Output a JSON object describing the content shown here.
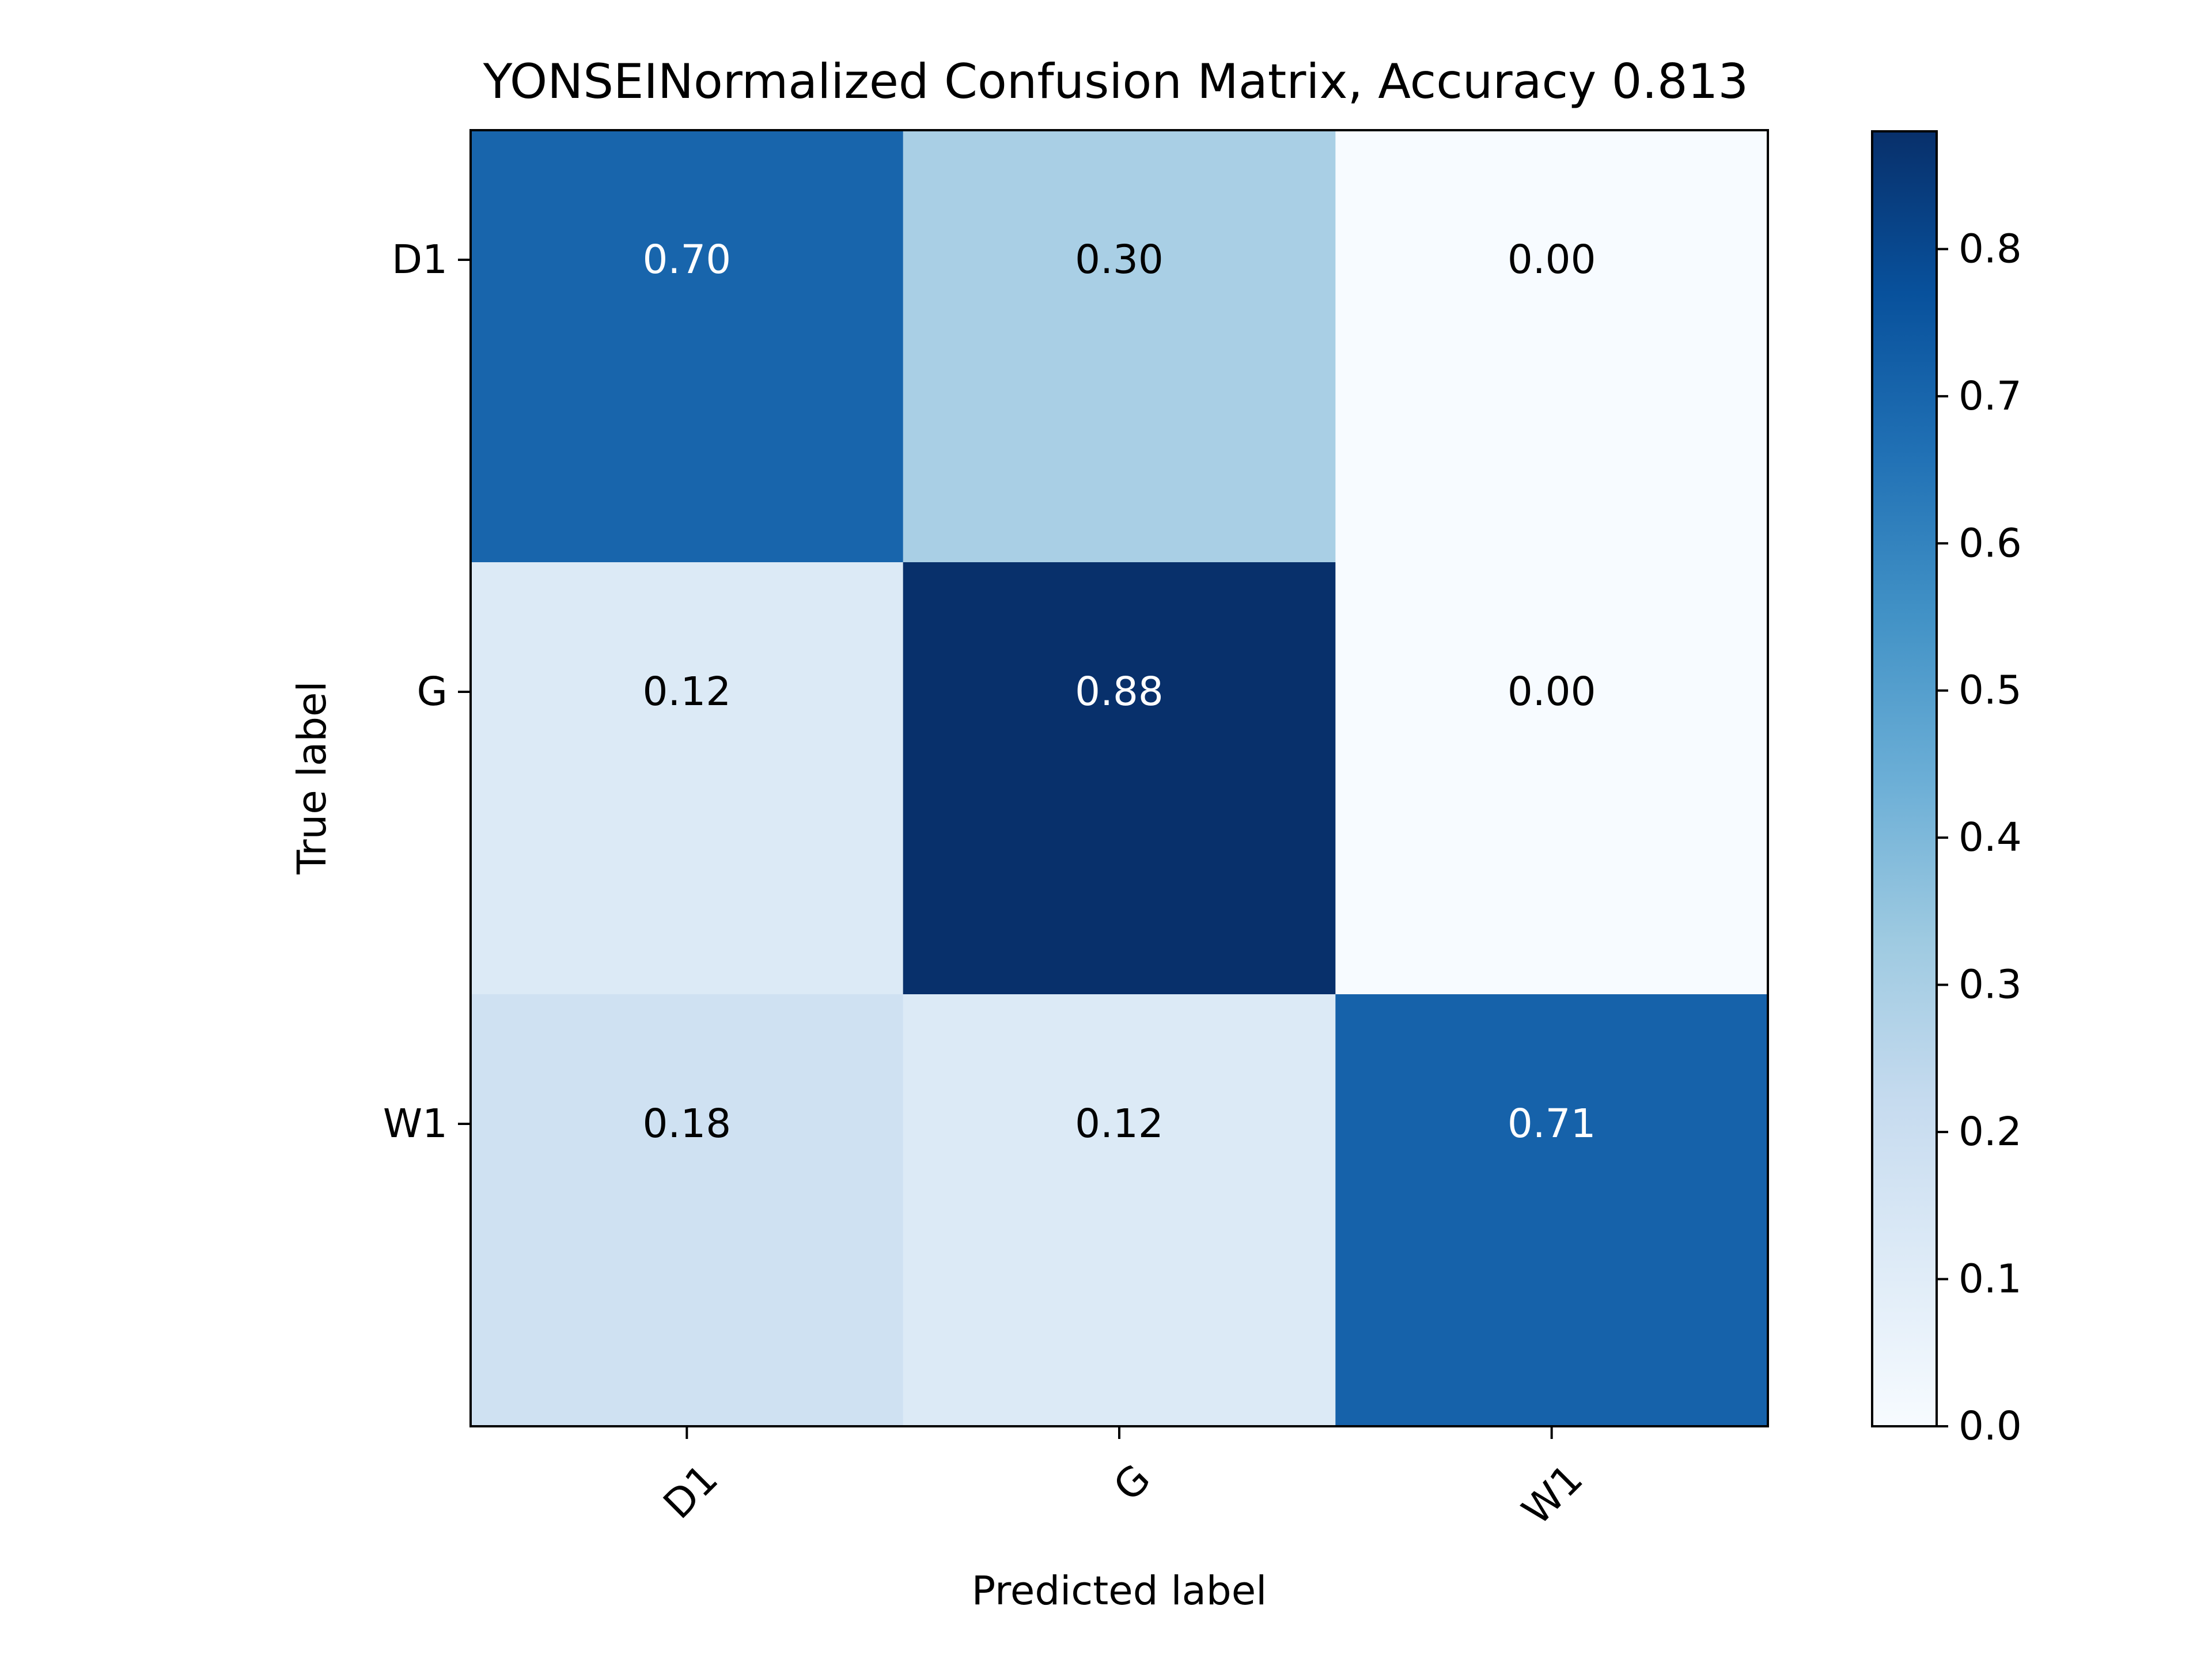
{
  "chart_data": {
    "type": "heatmap",
    "title": "YONSEINormalized Confusion Matrix, Accuracy 0.813",
    "xlabel": "Predicted label",
    "ylabel": "True label",
    "x_categories": [
      "D1",
      "G",
      "W1"
    ],
    "y_categories": [
      "D1",
      "G",
      "W1"
    ],
    "values": [
      [
        0.7,
        0.3,
        0.0
      ],
      [
        0.12,
        0.88,
        0.0
      ],
      [
        0.18,
        0.12,
        0.71
      ]
    ],
    "value_labels": [
      [
        "0.70",
        "0.30",
        "0.00"
      ],
      [
        "0.12",
        "0.88",
        "0.00"
      ],
      [
        "0.18",
        "0.12",
        "0.71"
      ]
    ],
    "colorbar": {
      "range": [
        0.0,
        0.88
      ],
      "ticks": [
        "0.0",
        "0.1",
        "0.2",
        "0.3",
        "0.4",
        "0.5",
        "0.6",
        "0.7",
        "0.8"
      ],
      "colormap": "Blues"
    },
    "grid": false
  }
}
